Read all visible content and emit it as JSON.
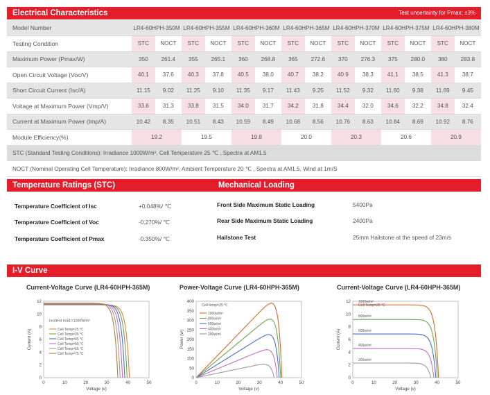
{
  "electrical": {
    "title": "Electrical Characteristics",
    "note": "Test uncertainty for Pmax: ±3%",
    "model_label": "Model Number",
    "models": [
      "LR4-60HPH-350M",
      "LR4-60HPH-355M",
      "LR4-60HPH-360M",
      "LR4-60HPH-365M",
      "LR4-60HPH-370M",
      "LR4-60HPH-375M",
      "LR4-60HPH-380M"
    ],
    "condition_label": "Testing Condition",
    "conditions": [
      "STC",
      "NOCT",
      "STC",
      "NOCT",
      "STC",
      "NOCT",
      "STC",
      "NOCT",
      "STC",
      "NOCT",
      "STC",
      "NOCT",
      "STC",
      "NOCT"
    ],
    "rows": [
      {
        "label": "Maximum Power (Pmax/W)",
        "values": [
          "350",
          "261.4",
          "355",
          "265.1",
          "360",
          "268.8",
          "365",
          "272.6",
          "370",
          "276.3",
          "375",
          "280.0",
          "380",
          "283.8"
        ]
      },
      {
        "label": "Open Circuit Voltage (Voc/V)",
        "values": [
          "40.1",
          "37.6",
          "40.3",
          "37.8",
          "40.5",
          "38.0",
          "40.7",
          "38.2",
          "40.9",
          "38.3",
          "41.1",
          "38.5",
          "41.3",
          "38.7"
        ]
      },
      {
        "label": "Short Circuit Current (Isc/A)",
        "values": [
          "11.15",
          "9.02",
          "11.25",
          "9.10",
          "11.35",
          "9.17",
          "11.43",
          "9.25",
          "11.52",
          "9.32",
          "11.60",
          "9.38",
          "11.69",
          "9.45"
        ]
      },
      {
        "label": "Voltage at Maximum Power (Vmp/V)",
        "values": [
          "33.6",
          "31.3",
          "33.8",
          "31.5",
          "34.0",
          "31.7",
          "34.2",
          "31.8",
          "34.4",
          "32.0",
          "34.6",
          "32.2",
          "34.8",
          "32.4"
        ]
      },
      {
        "label": "Current at Maximum Power (Imp/A)",
        "values": [
          "10.42",
          "8.35",
          "10.51",
          "8.43",
          "10.59",
          "8.49",
          "10.68",
          "8.56",
          "10.76",
          "8.63",
          "10.84",
          "8.69",
          "10.92",
          "8.76"
        ]
      }
    ],
    "efficiency_label": "Module Efficiency(%)",
    "efficiency": [
      "19.2",
      "19.5",
      "19.8",
      "20.0",
      "20.3",
      "20.6",
      "20.9"
    ],
    "stc_note": "STC (Standard Testing Conditions): Irradiance 1000W/m², Cell Temperature 25 ℃ , Spectra at AM1.5",
    "noct_note": "NOCT (Nominal Operating Cell Temperature): Irradiance 800W/m², Ambient Temperature 20 ℃ , Spectra at AM1.5, Wind at 1m/S"
  },
  "temperature": {
    "title": "Temperature Ratings (STC)",
    "items": [
      {
        "label": "Temperature Coefficient of  Isc",
        "value": "+0.048%/ ℃"
      },
      {
        "label": "Temperature Coefficient of  Voc",
        "value": "-0.270%/ ℃"
      },
      {
        "label": "Temperature Coefficient of  Pmax",
        "value": "-0.350%/ ℃"
      }
    ]
  },
  "mechanical": {
    "title": "Mechanical Loading",
    "items": [
      {
        "label": "Front Side Maximum Static Loading",
        "value": "5400Pa"
      },
      {
        "label": "Rear Side Maximum Static Loading",
        "value": "2400Pa"
      },
      {
        "label": "Hailstone Test",
        "value": "25mm Hailstone at the speed of 23m/s"
      }
    ]
  },
  "iv": {
    "title": "I-V Curve",
    "axis_x": "Voltage (v)",
    "chart1": {
      "title": "Current-Voltage Curve (LR4-60HPH-365M)",
      "ylabel": "Current (A)",
      "annotation": "Incident Irrad.=1000W/m²",
      "xticks": [
        "0",
        "10",
        "20",
        "30",
        "40",
        "50"
      ],
      "yticks": [
        "0",
        "2",
        "4",
        "6",
        "8",
        "10",
        "12"
      ],
      "legend": [
        "Cell Temp=25 ℃",
        "Cell Temp=35 ℃",
        "Cell Temp=45 ℃",
        "Cell Temp=55 ℃",
        "Cell Temp=65 ℃",
        "Cell Temp=75 ℃"
      ]
    },
    "chart2": {
      "title": "Power-Voltage Curve (LR4-60HPH-365M)",
      "ylabel": "Power (w)",
      "annotation": "Cell temp=25 ℃",
      "xticks": [
        "0",
        "10",
        "20",
        "30",
        "40",
        "50"
      ],
      "yticks": [
        "0",
        "50",
        "100",
        "150",
        "200",
        "250",
        "300",
        "350",
        "400"
      ],
      "legend": [
        "1000w/m²",
        "800w/m²",
        "600w/m²",
        "400w/m²",
        "200w/m²"
      ]
    },
    "chart3": {
      "title": "Current-Voltage Curve (LR4-60HPH-365M)",
      "ylabel": "Current (A)",
      "annotation": "Cell Temp=25 ℃",
      "xticks": [
        "0",
        "10",
        "20",
        "30",
        "40",
        "50"
      ],
      "yticks": [
        "0",
        "2",
        "4",
        "6",
        "8",
        "10",
        "12"
      ],
      "labels": [
        "1000w/m²",
        "800w/m²",
        "600w/m²",
        "400w/m²",
        "200w/m²"
      ]
    }
  },
  "chart_data": [
    {
      "type": "line",
      "title": "Current-Voltage Curve (LR4-60HPH-365M)",
      "xlabel": "Voltage (v)",
      "ylabel": "Current (A)",
      "xlim": [
        0,
        50
      ],
      "ylim": [
        0,
        12
      ],
      "series": [
        {
          "name": "Cell Temp=25 ℃",
          "isc": 11.43,
          "voc": 40.7,
          "color": "#e8803a"
        },
        {
          "name": "Cell Temp=35 ℃",
          "isc": 11.48,
          "voc": 39.6,
          "color": "#6aa84f"
        },
        {
          "name": "Cell Temp=45 ℃",
          "isc": 11.54,
          "voc": 38.5,
          "color": "#4a6fd1"
        },
        {
          "name": "Cell Temp=55 ℃",
          "isc": 11.59,
          "voc": 37.4,
          "color": "#c06bd0"
        },
        {
          "name": "Cell Temp=65 ℃",
          "isc": 11.65,
          "voc": 36.3,
          "color": "#9a9a9a"
        },
        {
          "name": "Cell Temp=75 ℃",
          "isc": 11.7,
          "voc": 35.2,
          "color": "#b07c3a"
        }
      ]
    },
    {
      "type": "line",
      "title": "Power-Voltage Curve (LR4-60HPH-365M)",
      "xlabel": "Voltage (v)",
      "ylabel": "Power (w)",
      "xlim": [
        0,
        50
      ],
      "ylim": [
        0,
        400
      ],
      "series": [
        {
          "name": "1000w/m²",
          "isc": 11.43,
          "voc": 40.7,
          "color": "#d9662d"
        },
        {
          "name": "800w/m²",
          "isc": 9.14,
          "voc": 40.1,
          "color": "#6aa84f"
        },
        {
          "name": "600w/m²",
          "isc": 6.86,
          "voc": 39.4,
          "color": "#4a6fd1"
        },
        {
          "name": "400w/m²",
          "isc": 4.57,
          "voc": 38.5,
          "color": "#c06bd0"
        },
        {
          "name": "200w/m²",
          "isc": 2.29,
          "voc": 37.0,
          "color": "#9a9a9a"
        }
      ]
    },
    {
      "type": "line",
      "title": "Current-Voltage Curve (LR4-60HPH-365M)",
      "xlabel": "Voltage (v)",
      "ylabel": "Current (A)",
      "xlim": [
        0,
        50
      ],
      "ylim": [
        0,
        12
      ],
      "series": [
        {
          "name": "1000w/m²",
          "isc": 11.43,
          "voc": 40.7,
          "color": "#d9662d"
        },
        {
          "name": "800w/m²",
          "isc": 9.14,
          "voc": 40.1,
          "color": "#6aa84f"
        },
        {
          "name": "600w/m²",
          "isc": 6.86,
          "voc": 39.4,
          "color": "#4a6fd1"
        },
        {
          "name": "400w/m²",
          "isc": 4.57,
          "voc": 38.5,
          "color": "#c06bd0"
        },
        {
          "name": "200w/m²",
          "isc": 2.29,
          "voc": 37.0,
          "color": "#9a9a9a"
        }
      ]
    }
  ]
}
